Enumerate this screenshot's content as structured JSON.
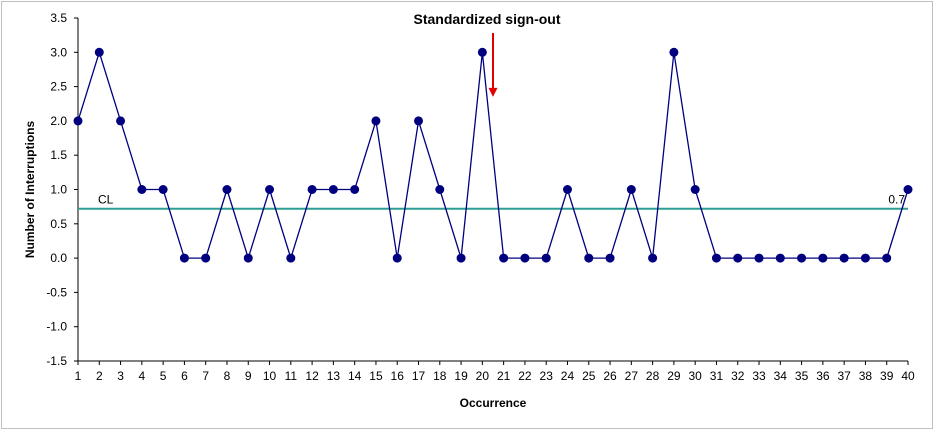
{
  "chart_data": {
    "type": "line",
    "x": [
      1,
      2,
      3,
      4,
      5,
      6,
      7,
      8,
      9,
      10,
      11,
      12,
      13,
      14,
      15,
      16,
      17,
      18,
      19,
      20,
      21,
      22,
      23,
      24,
      25,
      26,
      27,
      28,
      29,
      30,
      31,
      32,
      33,
      34,
      35,
      36,
      37,
      38,
      39,
      40
    ],
    "series": [
      {
        "name": "",
        "values": [
          2,
          3,
          2,
          1,
          1,
          0,
          0,
          1,
          0,
          1,
          0,
          1,
          1,
          1,
          2,
          0,
          2,
          1,
          0,
          3,
          0,
          0,
          0,
          1,
          0,
          0,
          1,
          0,
          3,
          1,
          0,
          0,
          0,
          0,
          0,
          0,
          0,
          0,
          0,
          1
        ]
      }
    ],
    "xlabel": "Occurrence",
    "ylabel": "Number of Interruptions",
    "ylim": [
      -1.5,
      3.5
    ],
    "yticks": [
      "3.5",
      "3.0",
      "2.5",
      "2.0",
      "1.5",
      "1.0",
      "0.5",
      "0.0",
      "-0.5",
      "-1.0",
      "-1.5"
    ],
    "center_line": {
      "label": "CL",
      "value": 0.72,
      "value_label": "0.7"
    },
    "annotation": {
      "text": "Standardized sign-out",
      "x": 20.5
    },
    "colors": {
      "line": "#00007f",
      "marker": "#00007f",
      "center_line": "#2e9e94",
      "arrow": "#e00000",
      "axis": "#000000"
    },
    "grid": false,
    "legend": "none"
  }
}
